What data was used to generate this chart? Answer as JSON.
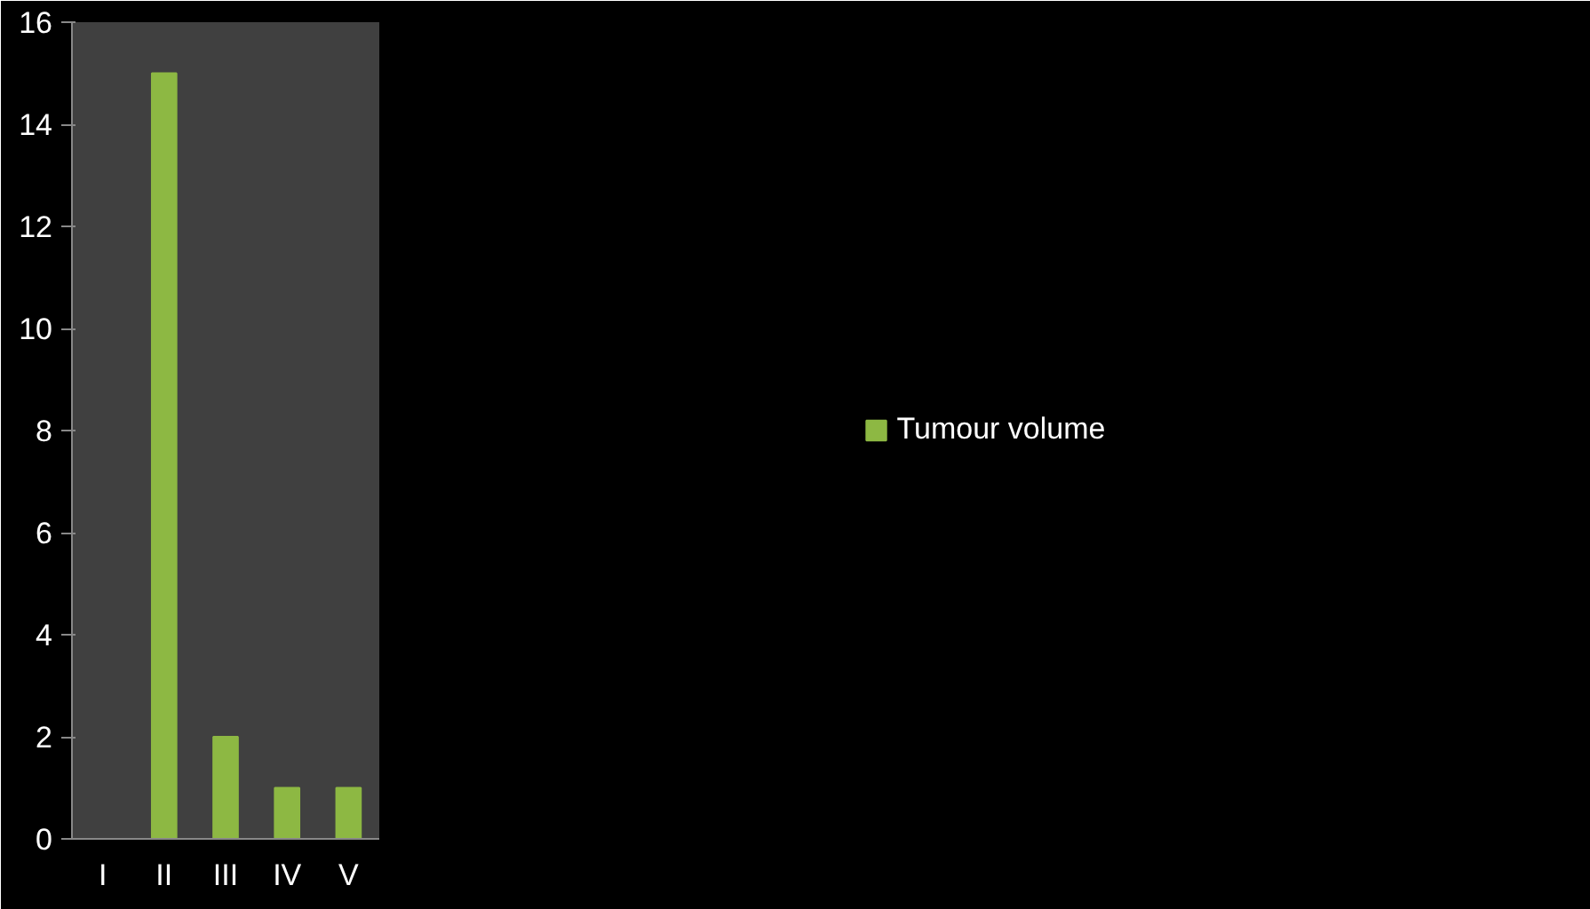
{
  "chart_data": {
    "type": "bar",
    "categories": [
      "I",
      "II",
      "III",
      "IV",
      "V"
    ],
    "series": [
      {
        "name": "Tumour volume",
        "color": "#8db843",
        "values": [
          0,
          15,
          2,
          1,
          1
        ]
      }
    ],
    "ylim": [
      0,
      16
    ],
    "yticks": [
      0,
      2,
      4,
      6,
      8,
      10,
      12,
      14,
      16
    ],
    "grid": false,
    "legend": "right"
  }
}
